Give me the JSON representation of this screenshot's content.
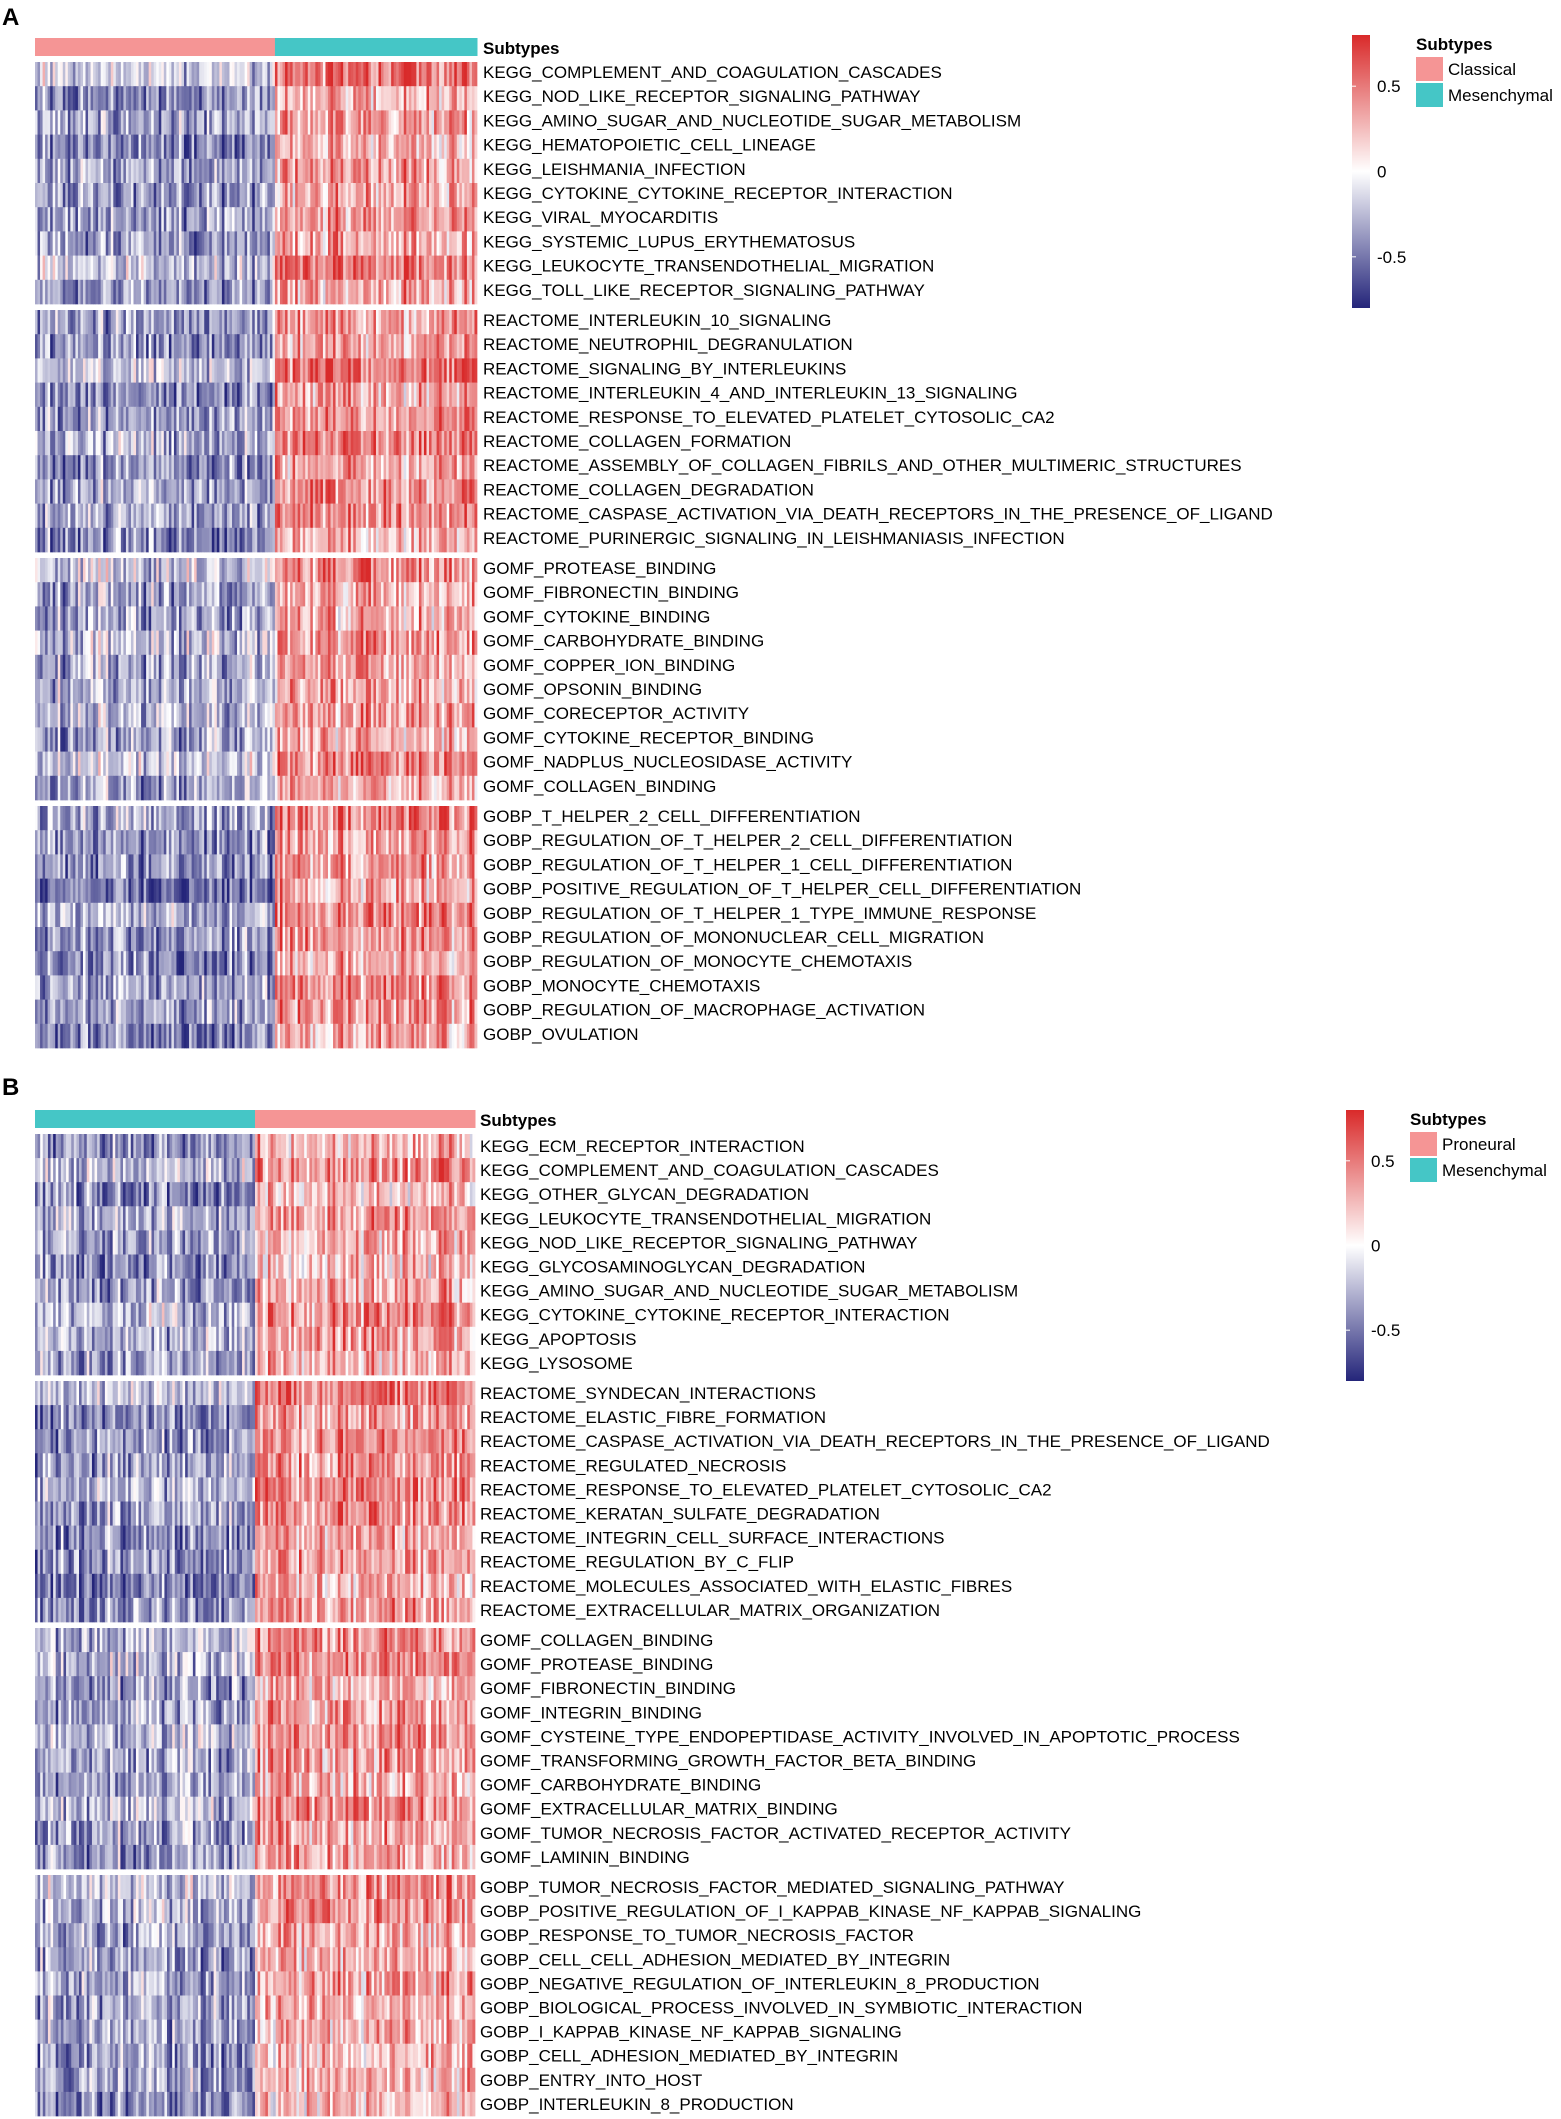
{
  "chart_data": [
    {
      "type": "heatmap",
      "panel_label": "A",
      "annotation_title": "Subtypes",
      "groups": [
        {
          "name": "Classical",
          "color": "#F59595",
          "count": 95
        },
        {
          "name": "Mesenchymal",
          "color": "#45C6C6",
          "count": 80
        }
      ],
      "group_order": [
        "Classical",
        "Mesenchymal"
      ],
      "legend": {
        "title": "Subtypes",
        "entries": [
          "Classical",
          "Mesenchymal"
        ]
      },
      "colorbar": {
        "min": -0.8,
        "max": 0.8,
        "ticks": [
          0.5,
          0,
          -0.5
        ],
        "tick_labels": [
          "0.5",
          "0",
          "-0.5"
        ],
        "low_color": "#24257A",
        "mid_color": "#FFFFFF",
        "high_color": "#D92A2A"
      },
      "row_blocks": [
        {
          "rows": [
            "KEGG_COMPLEMENT_AND_COAGULATION_CASCADES",
            "KEGG_NOD_LIKE_RECEPTOR_SIGNALING_PATHWAY",
            "KEGG_AMINO_SUGAR_AND_NUCLEOTIDE_SUGAR_METABOLISM",
            "KEGG_HEMATOPOIETIC_CELL_LINEAGE",
            "KEGG_LEISHMANIA_INFECTION",
            "KEGG_CYTOKINE_CYTOKINE_RECEPTOR_INTERACTION",
            "KEGG_VIRAL_MYOCARDITIS",
            "KEGG_SYSTEMIC_LUPUS_ERYTHEMATOSUS",
            "KEGG_LEUKOCYTE_TRANSENDOTHELIAL_MIGRATION",
            "KEGG_TOLL_LIKE_RECEPTOR_SIGNALING_PATHWAY"
          ],
          "mean_by_group": [
            -0.3,
            0.4
          ]
        },
        {
          "rows": [
            "REACTOME_INTERLEUKIN_10_SIGNALING",
            "REACTOME_NEUTROPHIL_DEGRANULATION",
            "REACTOME_SIGNALING_BY_INTERLEUKINS",
            "REACTOME_INTERLEUKIN_4_AND_INTERLEUKIN_13_SIGNALING",
            "REACTOME_RESPONSE_TO_ELEVATED_PLATELET_CYTOSOLIC_CA2",
            "REACTOME_COLLAGEN_FORMATION",
            "REACTOME_ASSEMBLY_OF_COLLAGEN_FIBRILS_AND_OTHER_MULTIMERIC_STRUCTURES",
            "REACTOME_COLLAGEN_DEGRADATION",
            "REACTOME_CASPASE_ACTIVATION_VIA_DEATH_RECEPTORS_IN_THE_PRESENCE_OF_LIGAND",
            "REACTOME_PURINERGIC_SIGNALING_IN_LEISHMANIASIS_INFECTION"
          ],
          "mean_by_group": [
            -0.3,
            0.4
          ]
        },
        {
          "rows": [
            "GOMF_PROTEASE_BINDING",
            "GOMF_FIBRONECTIN_BINDING",
            "GOMF_CYTOKINE_BINDING",
            "GOMF_CARBOHYDRATE_BINDING",
            "GOMF_COPPER_ION_BINDING",
            "GOMF_OPSONIN_BINDING",
            "GOMF_CORECEPTOR_ACTIVITY",
            "GOMF_CYTOKINE_RECEPTOR_BINDING",
            "GOMF_NADPLUS_NUCLEOSIDASE_ACTIVITY",
            "GOMF_COLLAGEN_BINDING"
          ],
          "mean_by_group": [
            -0.25,
            0.35
          ]
        },
        {
          "rows": [
            "GOBP_T_HELPER_2_CELL_DIFFERENTIATION",
            "GOBP_REGULATION_OF_T_HELPER_2_CELL_DIFFERENTIATION",
            "GOBP_REGULATION_OF_T_HELPER_1_CELL_DIFFERENTIATION",
            "GOBP_POSITIVE_REGULATION_OF_T_HELPER_CELL_DIFFERENTIATION",
            "GOBP_REGULATION_OF_T_HELPER_1_TYPE_IMMUNE_RESPONSE",
            "GOBP_REGULATION_OF_MONONUCLEAR_CELL_MIGRATION",
            "GOBP_REGULATION_OF_MONOCYTE_CHEMOTAXIS",
            "GOBP_MONOCYTE_CHEMOTAXIS",
            "GOBP_REGULATION_OF_MACROPHAGE_ACTIVATION",
            "GOBP_OVULATION"
          ],
          "mean_by_group": [
            -0.4,
            0.4
          ]
        }
      ]
    },
    {
      "type": "heatmap",
      "panel_label": "B",
      "annotation_title": "Subtypes",
      "groups": [
        {
          "name": "Proneural",
          "color": "#F59595",
          "count": 85
        },
        {
          "name": "Mesenchymal",
          "color": "#45C6C6",
          "count": 85
        }
      ],
      "group_order": [
        "Mesenchymal",
        "Proneural"
      ],
      "legend": {
        "title": "Subtypes",
        "entries": [
          "Proneural",
          "Mesenchymal"
        ]
      },
      "colorbar": {
        "min": -0.8,
        "max": 0.8,
        "ticks": [
          0.5,
          0,
          -0.5
        ],
        "tick_labels": [
          "0.5",
          "0",
          "-0.5"
        ],
        "low_color": "#24257A",
        "mid_color": "#FFFFFF",
        "high_color": "#D92A2A"
      },
      "row_blocks": [
        {
          "rows": [
            "KEGG_ECM_RECEPTOR_INTERACTION",
            "KEGG_COMPLEMENT_AND_COAGULATION_CASCADES",
            "KEGG_OTHER_GLYCAN_DEGRADATION",
            "KEGG_LEUKOCYTE_TRANSENDOTHELIAL_MIGRATION",
            "KEGG_NOD_LIKE_RECEPTOR_SIGNALING_PATHWAY",
            "KEGG_GLYCOSAMINOGLYCAN_DEGRADATION",
            "KEGG_AMINO_SUGAR_AND_NUCLEOTIDE_SUGAR_METABOLISM",
            "KEGG_CYTOKINE_CYTOKINE_RECEPTOR_INTERACTION",
            "KEGG_APOPTOSIS",
            "KEGG_LYSOSOME"
          ],
          "mean_by_group": [
            0.35,
            -0.3
          ]
        },
        {
          "rows": [
            "REACTOME_SYNDECAN_INTERACTIONS",
            "REACTOME_ELASTIC_FIBRE_FORMATION",
            "REACTOME_CASPASE_ACTIVATION_VIA_DEATH_RECEPTORS_IN_THE_PRESENCE_OF_LIGAND",
            "REACTOME_REGULATED_NECROSIS",
            "REACTOME_RESPONSE_TO_ELEVATED_PLATELET_CYTOSOLIC_CA2",
            "REACTOME_KERATAN_SULFATE_DEGRADATION",
            "REACTOME_INTEGRIN_CELL_SURFACE_INTERACTIONS",
            "REACTOME_REGULATION_BY_C_FLIP",
            "REACTOME_MOLECULES_ASSOCIATED_WITH_ELASTIC_FIBRES",
            "REACTOME_EXTRACELLULAR_MATRIX_ORGANIZATION"
          ],
          "mean_by_group": [
            0.4,
            -0.35
          ]
        },
        {
          "rows": [
            "GOMF_COLLAGEN_BINDING",
            "GOMF_PROTEASE_BINDING",
            "GOMF_FIBRONECTIN_BINDING",
            "GOMF_INTEGRIN_BINDING",
            "GOMF_CYSTEINE_TYPE_ENDOPEPTIDASE_ACTIVITY_INVOLVED_IN_APOPTOTIC_PROCESS",
            "GOMF_TRANSFORMING_GROWTH_FACTOR_BETA_BINDING",
            "GOMF_CARBOHYDRATE_BINDING",
            "GOMF_EXTRACELLULAR_MATRIX_BINDING",
            "GOMF_TUMOR_NECROSIS_FACTOR_ACTIVATED_RECEPTOR_ACTIVITY",
            "GOMF_LAMININ_BINDING"
          ],
          "mean_by_group": [
            0.35,
            -0.3
          ]
        },
        {
          "rows": [
            "GOBP_TUMOR_NECROSIS_FACTOR_MEDIATED_SIGNALING_PATHWAY",
            "GOBP_POSITIVE_REGULATION_OF_I_KAPPAB_KINASE_NF_KAPPAB_SIGNALING",
            "GOBP_RESPONSE_TO_TUMOR_NECROSIS_FACTOR",
            "GOBP_CELL_CELL_ADHESION_MEDIATED_BY_INTEGRIN",
            "GOBP_NEGATIVE_REGULATION_OF_INTERLEUKIN_8_PRODUCTION",
            "GOBP_BIOLOGICAL_PROCESS_INVOLVED_IN_SYMBIOTIC_INTERACTION",
            "GOBP_I_KAPPAB_KINASE_NF_KAPPAB_SIGNALING",
            "GOBP_CELL_ADHESION_MEDIATED_BY_INTEGRIN",
            "GOBP_ENTRY_INTO_HOST",
            "GOBP_INTERLEUKIN_8_PRODUCTION"
          ],
          "mean_by_group": [
            0.3,
            -0.3
          ]
        }
      ]
    }
  ]
}
